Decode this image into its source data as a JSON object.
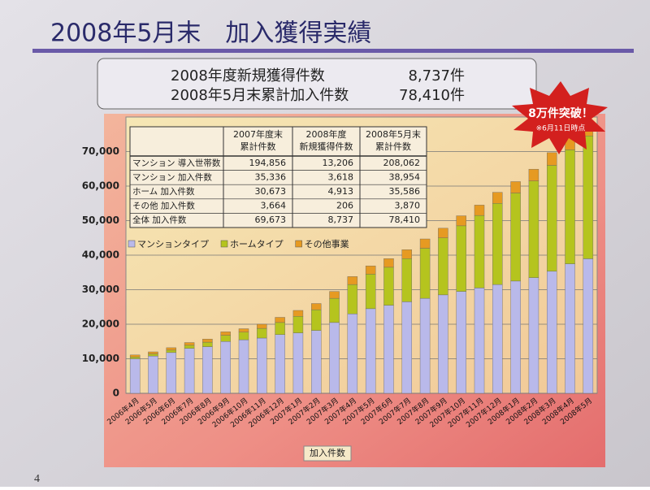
{
  "header": {
    "title": "2008年5月末　加入獲得実績"
  },
  "summary": [
    {
      "label": "2008年度新規獲得件数",
      "value": "8,737件"
    },
    {
      "label": "2008年5月末累計加入件数",
      "value": "78,410件"
    }
  ],
  "badge": {
    "text": "8万件突破！",
    "note": "※6月11日時点"
  },
  "page_number": "4",
  "chart_data": {
    "type": "stacked_bar",
    "x_label": "加入件数",
    "categories": [
      "2006年4月",
      "2006年5月",
      "2006年6月",
      "2006年7月",
      "2006年8月",
      "2006年9月",
      "2006年10月",
      "2006年11月",
      "2006年12月",
      "2007年1月",
      "2007年2月",
      "2007年3月",
      "2007年4月",
      "2007年5月",
      "2007年6月",
      "2007年7月",
      "2007年8月",
      "2007年9月",
      "2007年10月",
      "2007年11月",
      "2007年12月",
      "2008年1月",
      "2008年2月",
      "2008年3月",
      "2008年4月",
      "2008年5月"
    ],
    "series": [
      {
        "name": "マンションタイプ",
        "color": "#b9b9ea",
        "values": [
          10000,
          10800,
          11800,
          13000,
          13500,
          15000,
          15500,
          16000,
          17000,
          17500,
          18200,
          20500,
          23000,
          24500,
          25500,
          26500,
          27500,
          28500,
          29500,
          30500,
          31500,
          32500,
          33500,
          35336,
          37500,
          38954
        ]
      },
      {
        "name": "ホームタイプ",
        "color": "#b5c41e",
        "values": [
          500,
          600,
          700,
          900,
          1300,
          1800,
          2200,
          2800,
          3500,
          4800,
          6000,
          7000,
          8500,
          10000,
          11000,
          12500,
          14500,
          16500,
          19000,
          21000,
          23500,
          25500,
          28000,
          30673,
          33000,
          35586
        ]
      },
      {
        "name": "その他事業",
        "color": "#e69a22",
        "values": [
          600,
          600,
          700,
          800,
          900,
          1000,
          1000,
          1200,
          1500,
          1700,
          1800,
          2000,
          2300,
          2400,
          2500,
          2600,
          2700,
          2800,
          2900,
          3000,
          3200,
          3300,
          3400,
          3664,
          3700,
          3870
        ]
      }
    ],
    "ylim": [
      0,
      80000
    ],
    "yticks": [
      0,
      {
        "value": 10000,
        "label": "10,000"
      },
      {
        "value": 20000,
        "label": "20,000"
      },
      {
        "value": 30000,
        "label": "30,000"
      },
      {
        "value": 40000,
        "label": "40,000"
      },
      {
        "value": 50000,
        "label": "50,000"
      },
      {
        "value": 60000,
        "label": "60,000"
      },
      {
        "value": 70000,
        "label": "70,000"
      }
    ],
    "grid": true,
    "table": {
      "header": [
        [
          "2007年度末",
          "累計件数"
        ],
        [
          "2008年度",
          "新規獲得件数"
        ],
        [
          "2008年5月末",
          "累計件数"
        ]
      ],
      "rows": [
        [
          "マンション 導入世帯数",
          "194,856",
          "13,206",
          "208,062"
        ],
        [
          "マンション 加入件数",
          "35,336",
          "3,618",
          "38,954"
        ],
        [
          "ホーム 加入件数",
          "30,673",
          "4,913",
          "35,586"
        ],
        [
          "その他 加入件数",
          "3,664",
          "206",
          "3,870"
        ],
        [
          "全体 加入件数",
          "69,673",
          "8,737",
          "78,410"
        ]
      ]
    }
  }
}
